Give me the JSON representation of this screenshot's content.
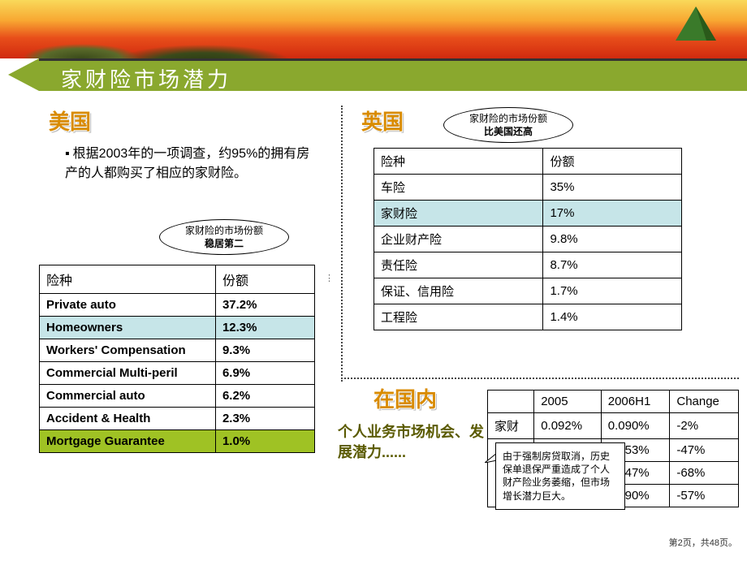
{
  "title": "家财险市场潜力",
  "us": {
    "heading": "美国",
    "body": "根据2003年的一项调查，约95%的拥有房产的人都购买了相应的家财险。",
    "callout_top": "家财险的市场份额",
    "callout_bot": "稳居第二",
    "columns": [
      "险种",
      "份额"
    ],
    "rows": [
      {
        "name": "Private auto",
        "val": "37.2%",
        "hl": ""
      },
      {
        "name": "Homeowners",
        "val": "12.3%",
        "hl": "hl-blue"
      },
      {
        "name": "Workers' Compensation",
        "val": "9.3%",
        "hl": ""
      },
      {
        "name": "Commercial Multi-peril",
        "val": "6.9%",
        "hl": ""
      },
      {
        "name": "Commercial auto",
        "val": "6.2%",
        "hl": ""
      },
      {
        "name": "Accident & Health",
        "val": "2.3%",
        "hl": ""
      },
      {
        "name": "Mortgage Guarantee",
        "val": "1.0%",
        "hl": "hl-green"
      }
    ]
  },
  "uk": {
    "heading": "英国",
    "callout_top": "家财险的市场份额",
    "callout_bot": "比美国还高",
    "columns": [
      "险种",
      "份额"
    ],
    "rows": [
      {
        "name": "车险",
        "val": "35%",
        "hl": ""
      },
      {
        "name": "家财险",
        "val": "17%",
        "hl": "hl-blue"
      },
      {
        "name": "企业财产险",
        "val": "9.8%",
        "hl": ""
      },
      {
        "name": "责任险",
        "val": "8.7%",
        "hl": ""
      },
      {
        "name": "保证、信用险",
        "val": "1.7%",
        "hl": ""
      },
      {
        "name": "工程险",
        "val": "1.4%",
        "hl": ""
      }
    ]
  },
  "cn": {
    "heading": "在国内",
    "note": "个人业务市场机会、发展潜力......",
    "speech": "由于强制房贷取消，历史保单退保严重造成了个人财产险业务萎缩，但市场增长潜力巨大。",
    "header": [
      "",
      "2005",
      "2006H1",
      "Change"
    ],
    "row1": [
      "家财",
      "0.092%",
      "0.090%",
      "-2%"
    ],
    "rows_rest": [
      [
        "",
        "0.853%",
        "-47%"
      ],
      [
        "",
        "0.547%",
        "-68%"
      ],
      [
        "",
        "1.490%",
        "-57%"
      ]
    ]
  },
  "pager": "第2页，共48页。",
  "colors": {
    "olive": "#8aa82e",
    "orange": "#d98b00",
    "triangle": "#5a8a2a"
  }
}
